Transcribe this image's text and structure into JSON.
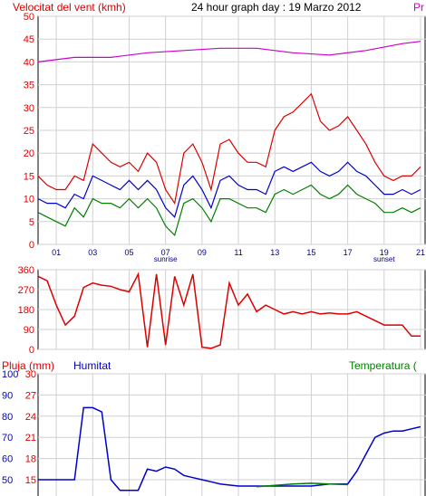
{
  "chart_data": [
    {
      "type": "line",
      "title": "24 hour graph day : 19 Marzo 2012",
      "ylabel": "Velocitat del vent (kmh)",
      "ylabel_right_fragment": "Pr",
      "ylim": [
        0,
        50
      ],
      "yticks": [
        "0",
        "5",
        "10",
        "15",
        "20",
        "25",
        "30",
        "35",
        "40",
        "45",
        "50"
      ],
      "xlim": [
        0,
        24
      ],
      "xticks": [
        {
          "h": 1,
          "label": "01"
        },
        {
          "h": 3,
          "label": "03"
        },
        {
          "h": 5,
          "label": "05"
        },
        {
          "h": 7,
          "label": "07"
        },
        {
          "h": 9,
          "label": "09"
        },
        {
          "h": 11,
          "label": "11"
        },
        {
          "h": 13,
          "label": "13"
        },
        {
          "h": 15,
          "label": "15"
        },
        {
          "h": 17,
          "label": "17"
        },
        {
          "h": 19,
          "label": "19"
        },
        {
          "h": 21,
          "label": "21"
        }
      ],
      "annotations": [
        {
          "h": 7,
          "label": "sunrise"
        },
        {
          "h": 19,
          "label": "sunset"
        }
      ],
      "grid": true,
      "series": [
        {
          "color": "#dd0000",
          "x": [
            0,
            0.5,
            1,
            1.5,
            2,
            2.5,
            3,
            3.5,
            4,
            4.5,
            5,
            5.5,
            6,
            6.5,
            7,
            7.5,
            8,
            8.5,
            9,
            9.5,
            10,
            10.5,
            11,
            11.5,
            12,
            12.5,
            13,
            13.5,
            14,
            14.5,
            15,
            15.5,
            16,
            16.5,
            17,
            17.5,
            18,
            18.5,
            19,
            19.5,
            20,
            20.5,
            21
          ],
          "values": [
            15,
            13,
            12,
            12,
            15,
            14,
            22,
            20,
            18,
            17,
            18,
            16,
            20,
            18,
            12,
            9,
            20,
            22,
            18,
            12,
            22,
            23,
            20,
            18,
            18,
            17,
            25,
            28,
            29,
            31,
            33,
            27,
            25,
            26,
            28,
            25,
            22,
            18,
            15,
            14,
            15,
            15,
            17
          ]
        },
        {
          "color": "#0000cc",
          "x": [
            0,
            0.5,
            1,
            1.5,
            2,
            2.5,
            3,
            3.5,
            4,
            4.5,
            5,
            5.5,
            6,
            6.5,
            7,
            7.5,
            8,
            8.5,
            9,
            9.5,
            10,
            10.5,
            11,
            11.5,
            12,
            12.5,
            13,
            13.5,
            14,
            14.5,
            15,
            15.5,
            16,
            16.5,
            17,
            17.5,
            18,
            18.5,
            19,
            19.5,
            20,
            20.5,
            21
          ],
          "values": [
            10,
            9,
            9,
            8,
            11,
            10,
            15,
            14,
            13,
            12,
            14,
            12,
            14,
            12,
            8,
            6,
            13,
            15,
            12,
            8,
            14,
            15,
            13,
            12,
            12,
            11,
            16,
            17,
            16,
            17,
            18,
            16,
            15,
            16,
            18,
            16,
            15,
            13,
            11,
            11,
            12,
            11,
            12
          ]
        },
        {
          "color": "#008000",
          "x": [
            0,
            0.5,
            1,
            1.5,
            2,
            2.5,
            3,
            3.5,
            4,
            4.5,
            5,
            5.5,
            6,
            6.5,
            7,
            7.5,
            8,
            8.5,
            9,
            9.5,
            10,
            10.5,
            11,
            11.5,
            12,
            12.5,
            13,
            13.5,
            14,
            14.5,
            15,
            15.5,
            16,
            16.5,
            17,
            17.5,
            18,
            18.5,
            19,
            19.5,
            20,
            20.5,
            21
          ],
          "values": [
            7,
            6,
            5,
            4,
            8,
            6,
            10,
            9,
            9,
            8,
            10,
            8,
            10,
            8,
            4,
            2,
            9,
            10,
            8,
            5,
            10,
            10,
            9,
            8,
            8,
            7,
            11,
            12,
            11,
            12,
            13,
            11,
            10,
            11,
            13,
            11,
            10,
            9,
            7,
            7,
            8,
            7,
            8
          ]
        },
        {
          "color": "#cc00cc",
          "x": [
            0,
            2,
            4,
            6,
            8,
            10,
            12,
            14,
            16,
            18,
            20,
            21
          ],
          "values": [
            40,
            41,
            41,
            42,
            42.5,
            43,
            43,
            42,
            41.5,
            42.5,
            44,
            44.5
          ]
        }
      ]
    },
    {
      "type": "line",
      "ylim": [
        0,
        360
      ],
      "yticks": [
        "0",
        "90",
        "180",
        "270",
        "360"
      ],
      "grid": true,
      "series": [
        {
          "color": "#dd0000",
          "x": [
            0,
            0.5,
            1,
            1.5,
            2,
            2.5,
            3,
            3.5,
            4,
            4.5,
            5,
            5.5,
            6,
            6.5,
            7,
            7.5,
            8,
            8.5,
            9,
            9.5,
            10,
            10.5,
            11,
            11.5,
            12,
            12.5,
            13,
            13.5,
            14,
            14.5,
            15,
            15.5,
            16,
            16.5,
            17,
            17.5,
            18,
            18.5,
            19,
            19.5,
            20,
            20.5,
            21
          ],
          "values": [
            330,
            310,
            200,
            110,
            150,
            280,
            300,
            290,
            285,
            270,
            260,
            340,
            10,
            340,
            20,
            330,
            200,
            340,
            10,
            5,
            20,
            300,
            200,
            250,
            170,
            200,
            180,
            160,
            170,
            160,
            170,
            160,
            165,
            160,
            160,
            170,
            150,
            130,
            110,
            110,
            110,
            60,
            60
          ]
        }
      ]
    },
    {
      "type": "line",
      "ylabel_left": "Pluja (mm)",
      "ylabel_center": "Humitat",
      "ylabel_right": "Temperatura (",
      "left_ticks": [
        "100",
        "90",
        "80",
        "70",
        "60",
        "50"
      ],
      "right_ticks": [
        "30",
        "27",
        "24",
        "21",
        "18",
        "15"
      ],
      "grid": true,
      "series": [
        {
          "name": "Humitat",
          "color": "#0000cc",
          "x": [
            0,
            2,
            2.5,
            3,
            3.5,
            4,
            4.5,
            5,
            5.5,
            6,
            6.5,
            7,
            7.5,
            8,
            8.5,
            9,
            9.5,
            10,
            11,
            12,
            13,
            14,
            15,
            16,
            17,
            17.5,
            18,
            18.5,
            19,
            19.5,
            20,
            20.5,
            21
          ],
          "values": [
            50,
            50,
            84,
            84,
            82,
            50,
            45,
            45,
            45,
            55,
            54,
            56,
            55,
            52,
            51,
            50,
            49,
            48,
            47,
            47,
            47,
            47,
            47,
            48,
            48,
            54,
            62,
            70,
            72,
            73,
            73,
            74,
            75
          ]
        },
        {
          "name": "Temperatura",
          "color": "#008000",
          "x": [
            12,
            13,
            14,
            15,
            16,
            17
          ],
          "values": [
            14,
            14.2,
            14.4,
            14.5,
            14.4,
            14.3
          ]
        }
      ]
    }
  ]
}
